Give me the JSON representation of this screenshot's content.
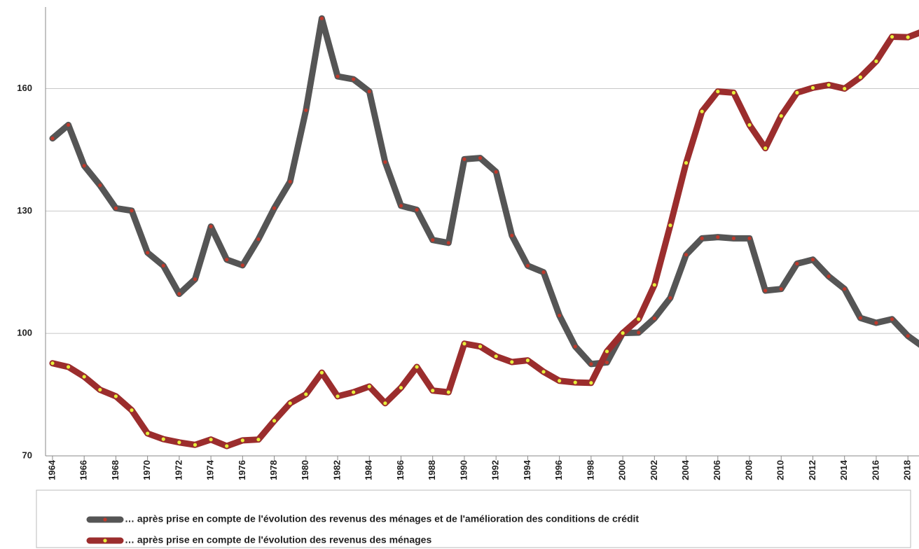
{
  "chart_data": {
    "type": "line",
    "x": [
      1964,
      1965,
      1966,
      1967,
      1968,
      1969,
      1970,
      1971,
      1972,
      1973,
      1974,
      1975,
      1976,
      1977,
      1978,
      1979,
      1980,
      1981,
      1982,
      1983,
      1984,
      1985,
      1986,
      1987,
      1988,
      1989,
      1990,
      1991,
      1992,
      1993,
      1994,
      1995,
      1996,
      1997,
      1998,
      1999,
      2000,
      2001,
      2002,
      2003,
      2004,
      2005,
      2006,
      2007,
      2008,
      2009,
      2010,
      2011,
      2012,
      2013,
      2014,
      2015,
      2016,
      2017,
      2018,
      2019
    ],
    "series": [
      {
        "name": "… après prise en compte de l'évolution des revenus des ménages et de l'amélioration des conditions de crédit",
        "color": "#555555",
        "marker_color": "#c0392b",
        "values": [
          147.8,
          151.1,
          141.1,
          136.3,
          130.7,
          130.1,
          119.8,
          116.6,
          109.7,
          113.3,
          126.2,
          118.1,
          116.7,
          123.1,
          130.7,
          137.2,
          154.7,
          177.2,
          163,
          162.3,
          159.3,
          142,
          131.3,
          130.3,
          122.9,
          122.2,
          142.7,
          143,
          139.6,
          124,
          116.6,
          115,
          104.4,
          96.8,
          92.5,
          92.9,
          100.1,
          100.2,
          103.7,
          108.7,
          119.3,
          123.3,
          123.6,
          123.3,
          123.3,
          110.5,
          110.9,
          117.1,
          118.1,
          114,
          110.9,
          103.8,
          102.6,
          103.5,
          99.4,
          96.6
        ]
      },
      {
        "name": "… après prise en compte de l'évolution des revenus des ménages",
        "color": "#9b2d2d",
        "marker_color": "#e6f03c",
        "values": [
          92.7,
          91.8,
          89.4,
          86.2,
          84.6,
          81.2,
          75.5,
          74.1,
          73.3,
          72.7,
          74,
          72.4,
          73.8,
          74,
          78.6,
          82.9,
          85.1,
          90.4,
          84.6,
          85.6,
          87,
          82.9,
          86.7,
          91.8,
          86,
          85.6,
          97.5,
          96.8,
          94.4,
          93,
          93.4,
          90.6,
          88.4,
          88,
          87.9,
          95.6,
          100.1,
          103.5,
          111.9,
          126.5,
          141.8,
          154.4,
          159.3,
          159,
          151.1,
          145.4,
          153.3,
          159,
          160.2,
          160.9,
          160,
          162.8,
          166.7,
          172.7,
          172.6,
          174.1
        ]
      }
    ],
    "xlim": [
      1963.56,
      2018.7
    ],
    "xticks": [
      1964,
      1966,
      1968,
      1970,
      1972,
      1974,
      1976,
      1978,
      1980,
      1982,
      1984,
      1986,
      1988,
      1990,
      1992,
      1994,
      1996,
      1998,
      2000,
      2002,
      2004,
      2006,
      2008,
      2010,
      2012,
      2014,
      2016,
      2018
    ],
    "ylim": [
      70,
      180
    ],
    "yticks": [
      70,
      100,
      130,
      160
    ],
    "grid": true
  }
}
